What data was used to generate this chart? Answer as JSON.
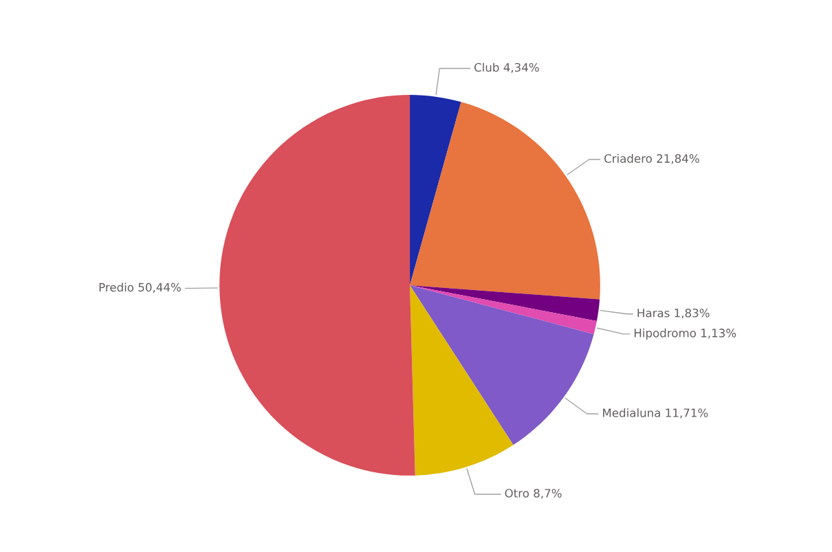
{
  "chart_data": {
    "type": "pie",
    "categories": [
      "Club",
      "Criadero",
      "Haras",
      "Hipodromo",
      "Medialuna",
      "Otro",
      "Predio"
    ],
    "values": [
      4.34,
      21.84,
      1.83,
      1.13,
      11.71,
      8.7,
      50.44
    ],
    "value_labels": [
      "4,34%",
      "21,84%",
      "1,83%",
      "1,13%",
      "11,71%",
      "8,7%",
      "50,44%"
    ],
    "colors": [
      "#1a2aa8",
      "#e8743f",
      "#730080",
      "#e04cb0",
      "#7f5ac8",
      "#e0bb00",
      "#d94f5a"
    ],
    "legend": false
  }
}
